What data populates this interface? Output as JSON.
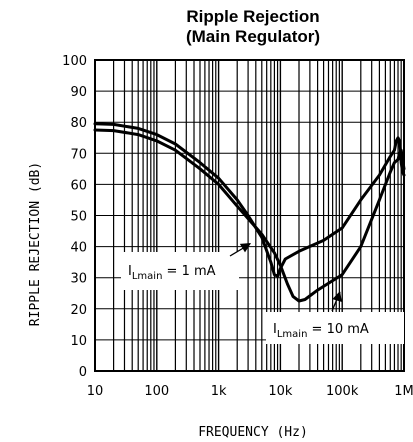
{
  "chart_data": {
    "type": "line",
    "title": "Ripple Rejection",
    "subtitle": "(Main Regulator)",
    "xlabel": "FREQUENCY (Hz)",
    "ylabel": "RIPPLE REJECTION (dB)",
    "x_scale": "log",
    "xlim": [
      10,
      1000000
    ],
    "ylim": [
      0,
      100
    ],
    "x_ticks": [
      10,
      100,
      1000,
      10000,
      100000,
      1000000
    ],
    "x_tick_labels": [
      "10",
      "100",
      "1k",
      "10k",
      "100k",
      "1M"
    ],
    "y_ticks": [
      0,
      10,
      20,
      30,
      40,
      50,
      60,
      70,
      80,
      90,
      100
    ],
    "y_tick_labels": [
      "0",
      "10",
      "20",
      "30",
      "40",
      "50",
      "60",
      "70",
      "80",
      "90",
      "100"
    ],
    "grid": true,
    "series": [
      {
        "name": "I_Lmain = 1 mA",
        "label_main": "I",
        "label_sub": "Lmain",
        "label_rest": " =  1 mA",
        "color": "#000000",
        "points": [
          [
            10,
            79.5
          ],
          [
            20,
            79.3
          ],
          [
            50,
            78
          ],
          [
            100,
            76
          ],
          [
            200,
            73
          ],
          [
            500,
            67
          ],
          [
            1000,
            62
          ],
          [
            2000,
            55
          ],
          [
            3000,
            50
          ],
          [
            5000,
            43
          ],
          [
            7000,
            35
          ],
          [
            8000,
            31
          ],
          [
            9000,
            30.5
          ],
          [
            10000,
            33
          ],
          [
            12000,
            36
          ],
          [
            20000,
            38.5
          ],
          [
            50000,
            42
          ],
          [
            100000,
            46
          ],
          [
            200000,
            55
          ],
          [
            400000,
            63
          ],
          [
            600000,
            69
          ],
          [
            700000,
            71
          ],
          [
            750000,
            74
          ],
          [
            800000,
            75
          ],
          [
            850000,
            74
          ],
          [
            900000,
            67
          ],
          [
            950000,
            64
          ],
          [
            1000000,
            63
          ]
        ]
      },
      {
        "name": "I_Lmain = 10 mA",
        "label_main": "I",
        "label_sub": "Lmain",
        "label_rest": " =  10 mA",
        "color": "#000000",
        "points": [
          [
            10,
            77.5
          ],
          [
            20,
            77.3
          ],
          [
            50,
            76
          ],
          [
            100,
            74
          ],
          [
            200,
            71
          ],
          [
            500,
            65
          ],
          [
            1000,
            60
          ],
          [
            2000,
            53
          ],
          [
            5000,
            44
          ],
          [
            8000,
            38
          ],
          [
            10000,
            34
          ],
          [
            13000,
            28
          ],
          [
            16000,
            24
          ],
          [
            20000,
            22.5
          ],
          [
            25000,
            23
          ],
          [
            40000,
            26
          ],
          [
            100000,
            31
          ],
          [
            200000,
            40
          ],
          [
            400000,
            55
          ],
          [
            600000,
            64
          ],
          [
            700000,
            67
          ],
          [
            800000,
            68
          ],
          [
            850000,
            70
          ],
          [
            900000,
            71
          ],
          [
            950000,
            68
          ],
          [
            1000000,
            65
          ]
        ]
      }
    ]
  }
}
